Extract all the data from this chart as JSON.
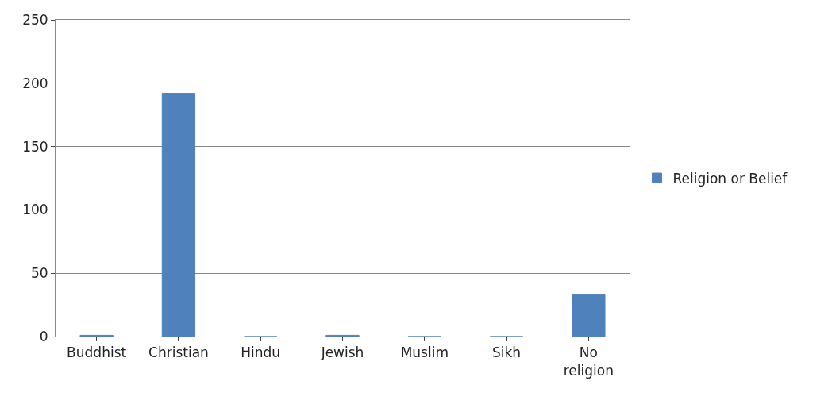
{
  "chart_data": {
    "type": "bar",
    "categories": [
      "Buddhist",
      "Christian",
      "Hindu",
      "Jewish",
      "Muslim",
      "Sikh",
      "No religion"
    ],
    "series": [
      {
        "name": "Religion or Belief",
        "color": "#4f81bd",
        "values": [
          1,
          192,
          0,
          1,
          0,
          0,
          33
        ]
      }
    ],
    "ylim": [
      0,
      250
    ],
    "yticks": [
      0,
      50,
      100,
      150,
      200,
      250
    ],
    "grid": "y",
    "legend": "right"
  }
}
